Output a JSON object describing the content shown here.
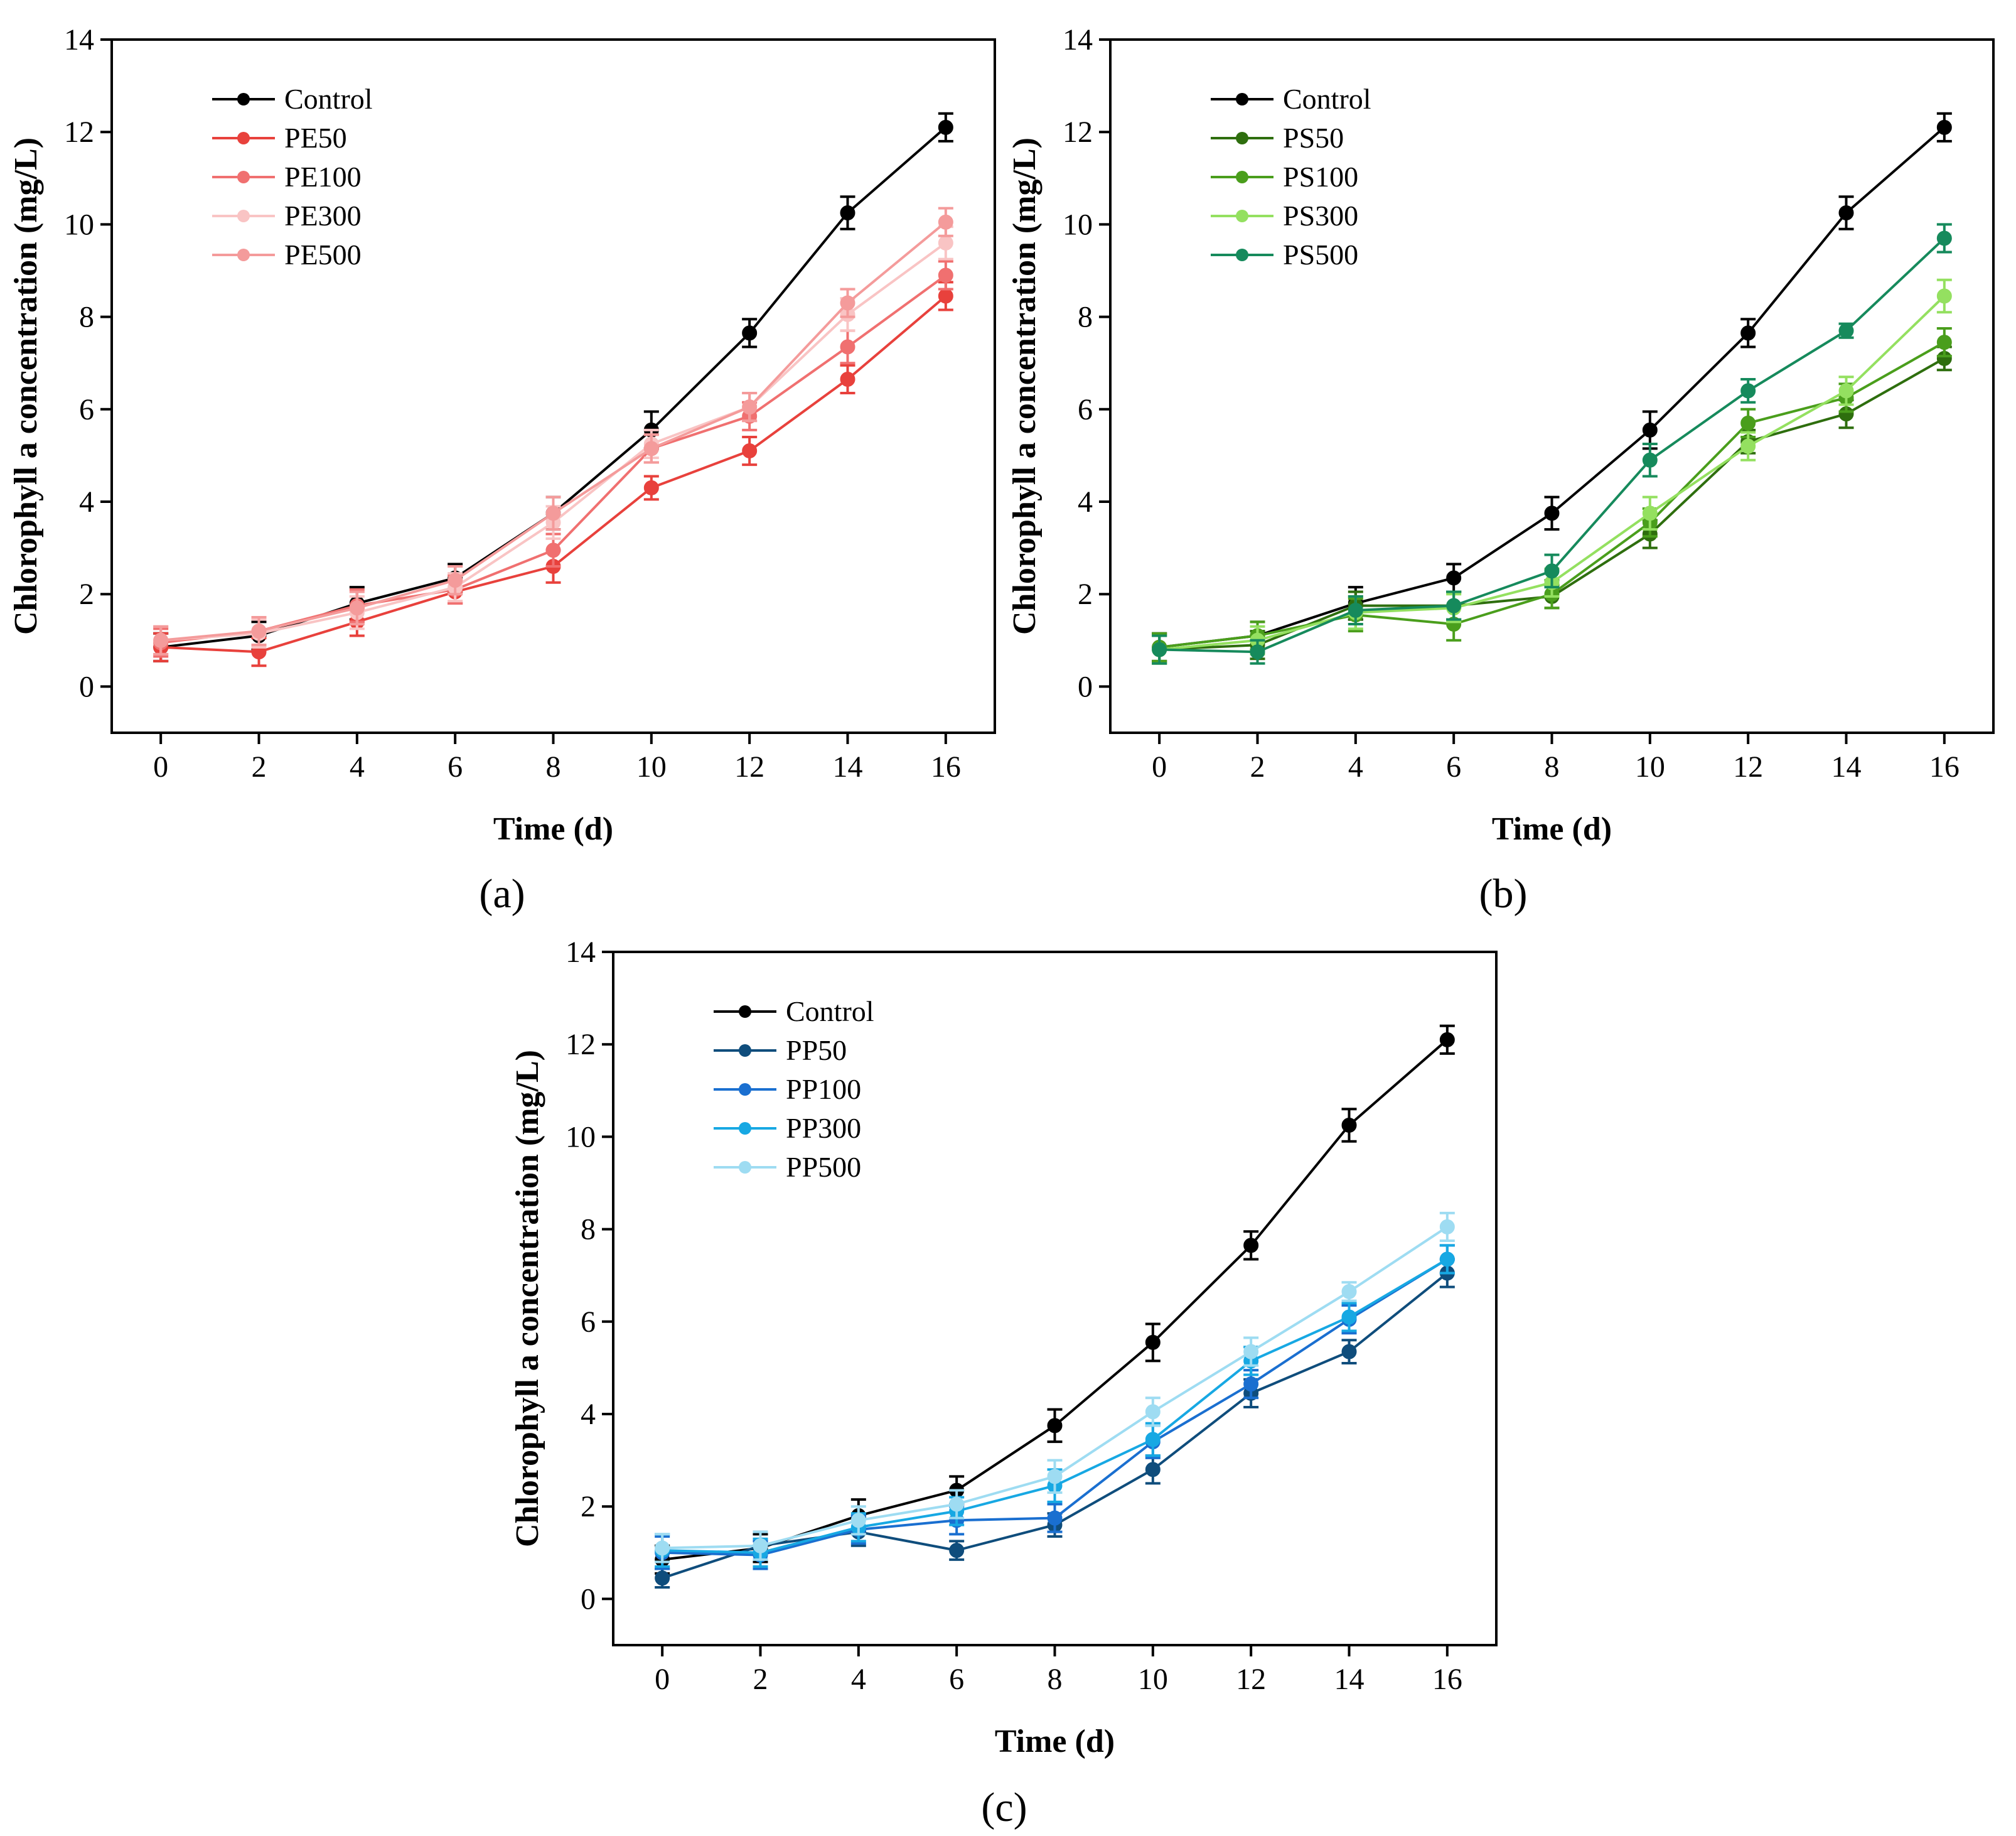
{
  "figure": {
    "panel_labels": [
      "(a)",
      "(b)",
      "(c)"
    ]
  },
  "chart_data": [
    {
      "panel": "(a)",
      "type": "line",
      "xlabel": "Time (d)",
      "ylabel": "Chlorophyll a concentration (mg/L)",
      "xlim": [
        -1,
        17
      ],
      "ylim": [
        -1,
        14
      ],
      "xticks": [
        0,
        2,
        4,
        6,
        8,
        10,
        12,
        14,
        16
      ],
      "yticks": [
        0,
        2,
        4,
        6,
        8,
        10,
        12,
        14
      ],
      "legend_position": "top-left",
      "x": [
        0,
        2,
        4,
        6,
        8,
        10,
        12,
        14,
        16
      ],
      "series": [
        {
          "name": "Control",
          "color": "#000000",
          "values": [
            0.85,
            1.1,
            1.8,
            2.35,
            3.75,
            5.55,
            7.65,
            10.25,
            12.1
          ],
          "errors": [
            0.3,
            0.3,
            0.35,
            0.3,
            0.35,
            0.4,
            0.3,
            0.35,
            0.3
          ]
        },
        {
          "name": "PE50",
          "color": "#e8413c",
          "values": [
            0.85,
            0.75,
            1.4,
            2.05,
            2.6,
            4.3,
            5.1,
            6.65,
            8.45
          ],
          "errors": [
            0.3,
            0.3,
            0.3,
            0.25,
            0.35,
            0.25,
            0.3,
            0.3,
            0.3
          ]
        },
        {
          "name": "PE100",
          "color": "#f07070",
          "values": [
            0.95,
            1.2,
            1.75,
            2.1,
            2.95,
            5.15,
            5.85,
            7.35,
            8.9
          ],
          "errors": [
            0.3,
            0.3,
            0.35,
            0.3,
            0.35,
            0.3,
            0.3,
            0.35,
            0.3
          ]
        },
        {
          "name": "PE300",
          "color": "#f9c4c4",
          "values": [
            1.0,
            1.15,
            1.6,
            2.15,
            3.55,
            5.25,
            6.05,
            8.05,
            9.6
          ],
          "errors": [
            0.3,
            0.3,
            0.35,
            0.3,
            0.35,
            0.3,
            0.3,
            0.35,
            0.35
          ]
        },
        {
          "name": "PE500",
          "color": "#f49b9b",
          "values": [
            1.0,
            1.2,
            1.7,
            2.3,
            3.75,
            5.15,
            6.05,
            8.3,
            10.05
          ],
          "errors": [
            0.3,
            0.3,
            0.35,
            0.3,
            0.35,
            0.3,
            0.3,
            0.3,
            0.3
          ]
        }
      ]
    },
    {
      "panel": "(b)",
      "type": "line",
      "xlabel": "Time (d)",
      "ylabel": "Chlorophyll a concentration (mg/L)",
      "xlim": [
        -1,
        17
      ],
      "ylim": [
        -1,
        14
      ],
      "xticks": [
        0,
        2,
        4,
        6,
        8,
        10,
        12,
        14,
        16
      ],
      "yticks": [
        0,
        2,
        4,
        6,
        8,
        10,
        12,
        14
      ],
      "legend_position": "top-left",
      "x": [
        0,
        2,
        4,
        6,
        8,
        10,
        12,
        14,
        16
      ],
      "series": [
        {
          "name": "Control",
          "color": "#000000",
          "values": [
            0.85,
            1.1,
            1.8,
            2.35,
            3.75,
            5.55,
            7.65,
            10.25,
            12.1
          ],
          "errors": [
            0.3,
            0.3,
            0.35,
            0.3,
            0.35,
            0.4,
            0.3,
            0.35,
            0.3
          ]
        },
        {
          "name": "PS50",
          "color": "#2e6e0e",
          "values": [
            0.8,
            0.9,
            1.75,
            1.75,
            1.95,
            3.3,
            5.3,
            5.9,
            7.1
          ],
          "errors": [
            0.3,
            0.3,
            0.3,
            0.3,
            0.25,
            0.3,
            0.25,
            0.3,
            0.25
          ]
        },
        {
          "name": "PS100",
          "color": "#4a9e1c",
          "values": [
            0.85,
            1.1,
            1.55,
            1.35,
            2.0,
            3.55,
            5.7,
            6.25,
            7.45
          ],
          "errors": [
            0.3,
            0.3,
            0.35,
            0.35,
            0.3,
            0.3,
            0.3,
            0.3,
            0.3
          ]
        },
        {
          "name": "PS300",
          "color": "#94e060",
          "values": [
            0.8,
            1.0,
            1.6,
            1.7,
            2.25,
            3.75,
            5.2,
            6.4,
            8.45
          ],
          "errors": [
            0.3,
            0.3,
            0.35,
            0.3,
            0.3,
            0.35,
            0.3,
            0.3,
            0.35
          ]
        },
        {
          "name": "PS500",
          "color": "#168a5c",
          "values": [
            0.8,
            0.75,
            1.65,
            1.75,
            2.5,
            4.9,
            6.4,
            7.7,
            9.7
          ],
          "errors": [
            0.3,
            0.25,
            0.3,
            0.3,
            0.35,
            0.35,
            0.25,
            0.15,
            0.3
          ]
        }
      ]
    },
    {
      "panel": "(c)",
      "type": "line",
      "xlabel": "Time (d)",
      "ylabel": "Chlorophyll a concentration (mg/L)",
      "xlim": [
        -1,
        17
      ],
      "ylim": [
        -1,
        14
      ],
      "xticks": [
        0,
        2,
        4,
        6,
        8,
        10,
        12,
        14,
        16
      ],
      "yticks": [
        0,
        2,
        4,
        6,
        8,
        10,
        12,
        14
      ],
      "legend_position": "top-left",
      "x": [
        0,
        2,
        4,
        6,
        8,
        10,
        12,
        14,
        16
      ],
      "series": [
        {
          "name": "Control",
          "color": "#000000",
          "values": [
            0.85,
            1.1,
            1.8,
            2.35,
            3.75,
            5.55,
            7.65,
            10.25,
            12.1
          ],
          "errors": [
            0.3,
            0.3,
            0.35,
            0.3,
            0.35,
            0.4,
            0.3,
            0.35,
            0.3
          ]
        },
        {
          "name": "PP50",
          "color": "#0f4d7c",
          "values": [
            0.45,
            1.15,
            1.45,
            1.05,
            1.6,
            2.8,
            4.45,
            5.35,
            7.05
          ],
          "errors": [
            0.2,
            0.3,
            0.3,
            0.2,
            0.25,
            0.3,
            0.3,
            0.25,
            0.3
          ]
        },
        {
          "name": "PP100",
          "color": "#1a6fd0",
          "values": [
            1.0,
            0.95,
            1.5,
            1.7,
            1.75,
            3.4,
            4.65,
            6.05,
            7.35
          ],
          "errors": [
            0.35,
            0.3,
            0.3,
            0.3,
            0.3,
            0.35,
            0.3,
            0.3,
            0.3
          ]
        },
        {
          "name": "PP300",
          "color": "#17a8e3",
          "values": [
            1.05,
            1.0,
            1.55,
            1.9,
            2.45,
            3.45,
            5.15,
            6.1,
            7.35
          ],
          "errors": [
            0.35,
            0.3,
            0.3,
            0.3,
            0.35,
            0.35,
            0.3,
            0.3,
            0.3
          ]
        },
        {
          "name": "PP500",
          "color": "#9edcf2",
          "values": [
            1.1,
            1.15,
            1.7,
            2.05,
            2.65,
            4.05,
            5.35,
            6.65,
            8.05
          ],
          "errors": [
            0.3,
            0.3,
            0.3,
            0.3,
            0.35,
            0.3,
            0.3,
            0.2,
            0.3
          ]
        }
      ]
    }
  ]
}
